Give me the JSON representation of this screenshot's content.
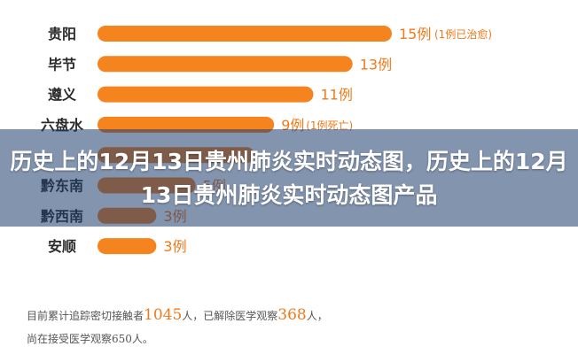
{
  "headline": "历史上的12月13日贵州肺炎实时动态图，历史上的12月13日贵州肺炎实时动态图产品",
  "colors": {
    "bar": "#f5841f",
    "value_text": "#f07a1a",
    "overlay": "rgba(30,60,110,0.55)"
  },
  "chart_data": {
    "type": "bar",
    "orientation": "horizontal",
    "title": "",
    "xlabel": "",
    "ylabel": "",
    "categories": [
      "贵阳",
      "毕节",
      "遵义",
      "六盘水",
      "",
      "黔东南",
      "黔西南",
      "安顺"
    ],
    "values": [
      15,
      13,
      11,
      9,
      8,
      5,
      3,
      3
    ],
    "value_labels": [
      "15例",
      "13例",
      "11例",
      "9例",
      "",
      "5例",
      "3例",
      "3例"
    ],
    "notes": [
      "(1例已治愈)",
      "",
      "",
      "(1例死亡)",
      "",
      "",
      "",
      ""
    ],
    "xlim": [
      0,
      15
    ]
  },
  "footnote": {
    "line1_prefix": "目前累计追踪密切接触者",
    "line1_num1": "1045",
    "line1_mid": "人，已解除医学观察",
    "line1_num2": "368",
    "line1_suffix": "人，",
    "line2": "尚在接受医学观察650人。"
  }
}
